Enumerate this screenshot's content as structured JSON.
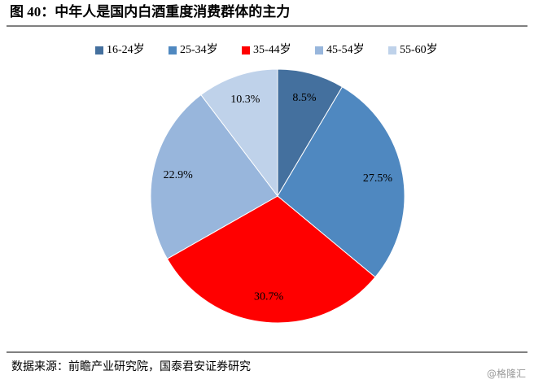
{
  "chart_data": {
    "type": "pie",
    "title": "图 40：中年人是国内白酒重度消费群体的主力",
    "categories": [
      "16-24岁",
      "25-34岁",
      "35-44岁",
      "45-54岁",
      "55-60岁"
    ],
    "values": [
      8.5,
      27.5,
      30.7,
      22.9,
      10.3
    ],
    "value_labels": [
      "8.5%",
      "27.5%",
      "30.7%",
      "22.9%",
      "10.3%"
    ],
    "colors": [
      "#44709e",
      "#4f88c0",
      "#ff0000",
      "#98b6dc",
      "#bfd2ea"
    ],
    "legend": "top"
  },
  "source": "数据来源：前瞻产业研究院，国泰君安证券研究",
  "watermark": "@格隆汇"
}
